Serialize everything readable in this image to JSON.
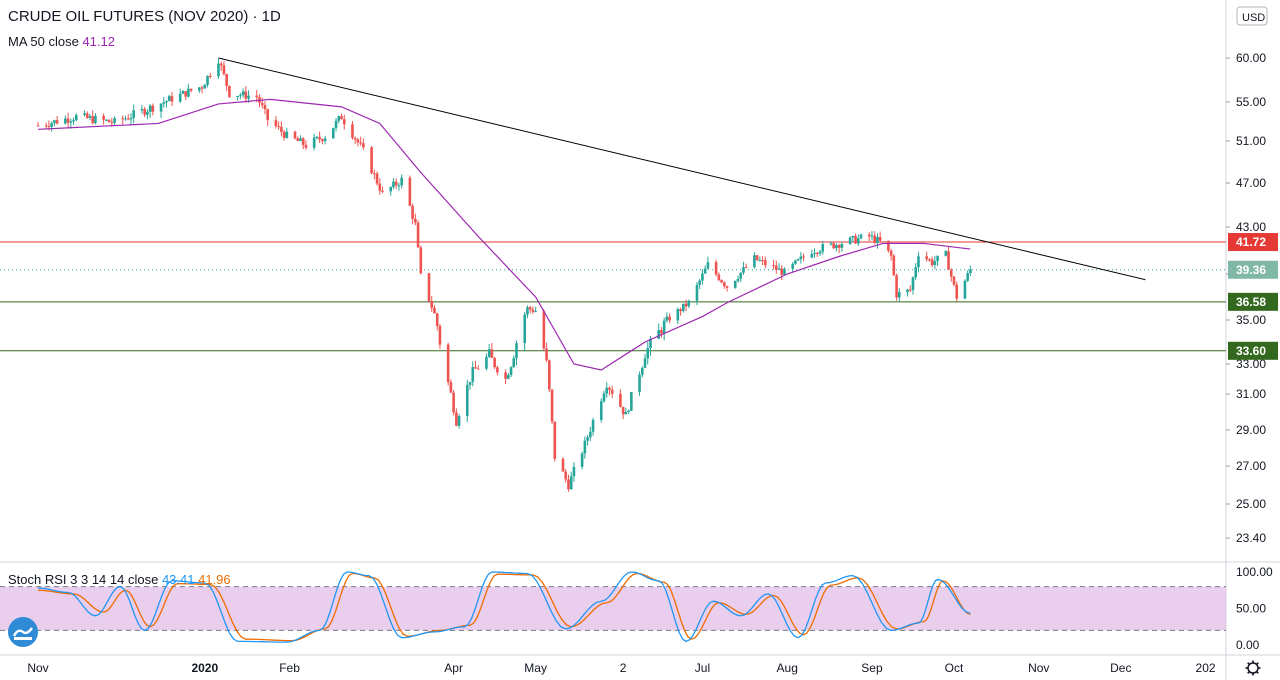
{
  "header": {
    "title": "CRUDE OIL FUTURES (NOV 2020)",
    "interval": "1D",
    "ma_label": "MA 50 close",
    "ma_value": "41.12",
    "stoch_label": "Stoch RSI 3 3 14 14 close",
    "stoch_k": "43.41",
    "stoch_d": "41.96"
  },
  "currency": "USD",
  "colors": {
    "up": "#26a69a",
    "down": "#ef5350",
    "ma": "#9c27b0",
    "resistance": "#e53935",
    "support": "#33691e",
    "trendline": "#000000",
    "stoch_k": "#2196f3",
    "stoch_d": "#ef6c00",
    "stoch_band": "#e1bee7"
  },
  "chart_data": {
    "type": "candlestick",
    "y_axis_ticks": [
      60.0,
      55.0,
      51.0,
      47.0,
      43.0,
      39.0,
      35.0,
      33.0,
      31.0,
      29.0,
      27.0,
      25.0,
      23.4
    ],
    "x_axis_labels": [
      "Nov",
      "2020",
      "Feb",
      "Apr",
      "May",
      "2",
      "Jul",
      "Aug",
      "Sep",
      "Oct",
      "Nov",
      "Dec",
      "202"
    ],
    "last_price": 39.36,
    "horizontal_lines": [
      {
        "price": 41.72,
        "label": "41.72",
        "role": "resistance"
      },
      {
        "price": 36.58,
        "label": "36.58",
        "role": "support"
      },
      {
        "price": 33.6,
        "label": "33.60",
        "role": "support"
      }
    ],
    "trendline": {
      "from": {
        "date": "2020-01-06",
        "price": 60.0
      },
      "to": {
        "date": "2020-12-10",
        "price": 38.5
      }
    },
    "price_path": [
      [
        "2019-11-01",
        52.6
      ],
      [
        "2019-11-15",
        53.5
      ],
      [
        "2019-11-29",
        52.9
      ],
      [
        "2019-12-13",
        54.5
      ],
      [
        "2019-12-31",
        56.8
      ],
      [
        "2020-01-06",
        59.9
      ],
      [
        "2020-01-10",
        56.0
      ],
      [
        "2020-01-20",
        55.6
      ],
      [
        "2020-01-24",
        53.2
      ],
      [
        "2020-01-31",
        51.5
      ],
      [
        "2020-02-07",
        50.6
      ],
      [
        "2020-02-14",
        51.5
      ],
      [
        "2020-02-20",
        53.5
      ],
      [
        "2020-02-28",
        50.0
      ],
      [
        "2020-03-06",
        46.0
      ],
      [
        "2020-03-13",
        47.3
      ],
      [
        "2020-03-18",
        43.2
      ],
      [
        "2020-03-20",
        38.8
      ],
      [
        "2020-03-25",
        35.5
      ],
      [
        "2020-04-02",
        29.5
      ],
      [
        "2020-04-08",
        32.5
      ],
      [
        "2020-04-14",
        33.4
      ],
      [
        "2020-04-20",
        32.0
      ],
      [
        "2020-04-28",
        36.0
      ],
      [
        "2020-05-01",
        35.8
      ],
      [
        "2020-05-05",
        33.0
      ],
      [
        "2020-05-08",
        27.5
      ],
      [
        "2020-05-13",
        26.0
      ],
      [
        "2020-05-19",
        28.2
      ],
      [
        "2020-05-27",
        31.7
      ],
      [
        "2020-06-03",
        29.8
      ],
      [
        "2020-06-10",
        33.5
      ],
      [
        "2020-06-18",
        35.0
      ],
      [
        "2020-06-26",
        36.5
      ],
      [
        "2020-07-03",
        39.8
      ],
      [
        "2020-07-10",
        37.9
      ],
      [
        "2020-07-20",
        40.3
      ],
      [
        "2020-07-31",
        39.1
      ],
      [
        "2020-08-10",
        41.0
      ],
      [
        "2020-08-20",
        41.6
      ],
      [
        "2020-08-31",
        42.2
      ],
      [
        "2020-09-04",
        41.7
      ],
      [
        "2020-09-08",
        40.5
      ],
      [
        "2020-09-10",
        37.2
      ],
      [
        "2020-09-15",
        37.6
      ],
      [
        "2020-09-18",
        40.8
      ],
      [
        "2020-09-23",
        40.0
      ],
      [
        "2020-09-28",
        40.6
      ],
      [
        "2020-10-02",
        37.0
      ],
      [
        "2020-10-07",
        39.36
      ]
    ],
    "ma50_path": [
      [
        "2019-11-01",
        52.2
      ],
      [
        "2019-12-15",
        52.8
      ],
      [
        "2020-01-06",
        54.8
      ],
      [
        "2020-01-25",
        55.3
      ],
      [
        "2020-02-20",
        54.5
      ],
      [
        "2020-03-05",
        52.8
      ],
      [
        "2020-03-20",
        48.0
      ],
      [
        "2020-04-10",
        42.2
      ],
      [
        "2020-05-01",
        37.0
      ],
      [
        "2020-05-15",
        33.0
      ],
      [
        "2020-05-25",
        32.6
      ],
      [
        "2020-06-10",
        34.0
      ],
      [
        "2020-07-01",
        35.3
      ],
      [
        "2020-07-10",
        36.5
      ],
      [
        "2020-08-01",
        39.0
      ],
      [
        "2020-08-20",
        40.5
      ],
      [
        "2020-09-05",
        41.6
      ],
      [
        "2020-09-20",
        41.6
      ],
      [
        "2020-10-07",
        41.12
      ]
    ],
    "stoch_rsi": {
      "range": [
        0,
        100
      ],
      "ticks": [
        100.0,
        50.0,
        0.0
      ],
      "band": [
        20,
        80
      ],
      "k_path": [
        [
          "2019-11-01",
          78
        ],
        [
          "2019-11-12",
          72
        ],
        [
          "2019-11-22",
          40
        ],
        [
          "2019-12-01",
          80
        ],
        [
          "2019-12-10",
          20
        ],
        [
          "2019-12-20",
          88
        ],
        [
          "2020-01-01",
          85
        ],
        [
          "2020-01-13",
          5
        ],
        [
          "2020-01-31",
          4
        ],
        [
          "2020-02-12",
          20
        ],
        [
          "2020-02-22",
          100
        ],
        [
          "2020-03-01",
          95
        ],
        [
          "2020-03-13",
          10
        ],
        [
          "2020-03-25",
          18
        ],
        [
          "2020-04-05",
          25
        ],
        [
          "2020-04-15",
          100
        ],
        [
          "2020-04-28",
          98
        ],
        [
          "2020-05-12",
          22
        ],
        [
          "2020-05-25",
          60
        ],
        [
          "2020-06-05",
          100
        ],
        [
          "2020-06-15",
          88
        ],
        [
          "2020-06-25",
          5
        ],
        [
          "2020-07-05",
          60
        ],
        [
          "2020-07-15",
          40
        ],
        [
          "2020-07-25",
          70
        ],
        [
          "2020-08-05",
          10
        ],
        [
          "2020-08-15",
          85
        ],
        [
          "2020-08-25",
          95
        ],
        [
          "2020-09-08",
          20
        ],
        [
          "2020-09-18",
          30
        ],
        [
          "2020-09-25",
          90
        ],
        [
          "2020-10-07",
          43.41
        ]
      ],
      "d_path": [
        [
          "2019-11-01",
          75
        ],
        [
          "2019-11-14",
          70
        ],
        [
          "2019-11-25",
          45
        ],
        [
          "2019-12-03",
          75
        ],
        [
          "2019-12-12",
          25
        ],
        [
          "2019-12-22",
          84
        ],
        [
          "2020-01-03",
          83
        ],
        [
          "2020-01-16",
          8
        ],
        [
          "2020-02-02",
          6
        ],
        [
          "2020-02-14",
          22
        ],
        [
          "2020-02-24",
          98
        ],
        [
          "2020-03-03",
          92
        ],
        [
          "2020-03-15",
          12
        ],
        [
          "2020-03-27",
          20
        ],
        [
          "2020-04-07",
          27
        ],
        [
          "2020-04-17",
          97
        ],
        [
          "2020-04-30",
          96
        ],
        [
          "2020-05-14",
          25
        ],
        [
          "2020-05-27",
          58
        ],
        [
          "2020-06-07",
          98
        ],
        [
          "2020-06-17",
          86
        ],
        [
          "2020-06-27",
          8
        ],
        [
          "2020-07-07",
          58
        ],
        [
          "2020-07-17",
          42
        ],
        [
          "2020-07-27",
          68
        ],
        [
          "2020-08-07",
          14
        ],
        [
          "2020-08-17",
          82
        ],
        [
          "2020-08-27",
          92
        ],
        [
          "2020-09-10",
          22
        ],
        [
          "2020-09-20",
          32
        ],
        [
          "2020-09-27",
          88
        ],
        [
          "2020-10-07",
          41.96
        ]
      ]
    }
  }
}
